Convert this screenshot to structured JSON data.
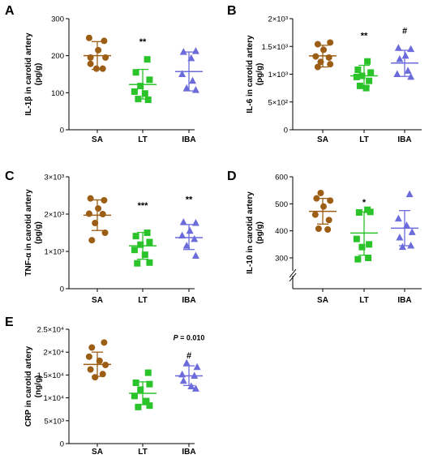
{
  "colors": {
    "SA": "#9c5d15",
    "LT": "#2ac42a",
    "IBA": "#6b6bdb"
  },
  "chart_data": [
    {
      "panel": "A",
      "type": "scatter",
      "ylabel": [
        "IL-1β in carotid artery",
        "(pg/g)"
      ],
      "categories": [
        "SA",
        "LT",
        "IBA"
      ],
      "ylim": [
        0,
        300
      ],
      "yticks": [
        0,
        100,
        200,
        300
      ],
      "ytick_labels": [
        "0",
        "100",
        "200",
        "300"
      ],
      "series": [
        {
          "category": "SA",
          "marker": "circle",
          "mean": 200,
          "sd_low": 163,
          "sd_high": 238,
          "values": [
            [
              -0.18,
              248
            ],
            [
              0.15,
              240
            ],
            [
              0.02,
              215
            ],
            [
              -0.15,
              195
            ],
            [
              0.18,
              195
            ],
            [
              -0.15,
              178
            ],
            [
              0.12,
              165
            ],
            [
              -0.02,
              165
            ]
          ]
        },
        {
          "category": "LT",
          "marker": "square",
          "mean": 122,
          "sd_low": 83,
          "sd_high": 163,
          "values": [
            [
              0.1,
              190
            ],
            [
              -0.15,
              155
            ],
            [
              0.15,
              135
            ],
            [
              -0.05,
              118
            ],
            [
              -0.18,
              103
            ],
            [
              0.05,
              98
            ],
            [
              -0.1,
              83
            ],
            [
              0.12,
              81
            ]
          ]
        },
        {
          "category": "IBA",
          "marker": "triangle",
          "mean": 157,
          "sd_low": 105,
          "sd_high": 210,
          "values": [
            [
              -0.12,
              210
            ],
            [
              0.15,
              212
            ],
            [
              0.05,
              193
            ],
            [
              -0.15,
              150
            ],
            [
              0.08,
              132
            ],
            [
              -0.05,
              112
            ],
            [
              0.15,
              107
            ]
          ]
        }
      ],
      "significance": [
        {
          "category": "LT",
          "text": "**",
          "y": 230
        }
      ]
    },
    {
      "panel": "B",
      "type": "scatter",
      "ylabel": [
        "IL-6 in carotid artery",
        "(pg/g)"
      ],
      "categories": [
        "SA",
        "LT",
        "IBA"
      ],
      "ylim": [
        0,
        2000
      ],
      "yticks": [
        0,
        500,
        1000,
        1500,
        2000
      ],
      "ytick_labels": [
        "0",
        "5×10²",
        "1×10³",
        "1.5×10³",
        "2×10³"
      ],
      "series": [
        {
          "category": "SA",
          "marker": "circle",
          "mean": 1330,
          "sd_low": 1130,
          "sd_high": 1520,
          "values": [
            [
              -0.12,
              1540
            ],
            [
              0.18,
              1570
            ],
            [
              0.02,
              1440
            ],
            [
              -0.17,
              1320
            ],
            [
              0.15,
              1300
            ],
            [
              -0.05,
              1220
            ],
            [
              0.18,
              1180
            ],
            [
              -0.12,
              1130
            ]
          ]
        },
        {
          "category": "LT",
          "marker": "square",
          "mean": 970,
          "sd_low": 780,
          "sd_high": 1160,
          "values": [
            [
              0.08,
              1230
            ],
            [
              -0.15,
              1080
            ],
            [
              0.16,
              1030
            ],
            [
              -0.05,
              970
            ],
            [
              -0.18,
              950
            ],
            [
              0.12,
              880
            ],
            [
              -0.1,
              790
            ],
            [
              0.05,
              750
            ]
          ]
        },
        {
          "category": "IBA",
          "marker": "triangle",
          "mean": 1200,
          "sd_low": 960,
          "sd_high": 1430,
          "values": [
            [
              -0.15,
              1470
            ],
            [
              0.15,
              1450
            ],
            [
              0.02,
              1330
            ],
            [
              -0.12,
              1270
            ],
            [
              0.08,
              1060
            ],
            [
              -0.18,
              1000
            ],
            [
              0.15,
              950
            ]
          ]
        }
      ],
      "significance": [
        {
          "category": "LT",
          "text": "**",
          "y": 1640
        },
        {
          "category": "IBA",
          "text": "#",
          "y": 1730
        }
      ]
    },
    {
      "panel": "C",
      "type": "scatter",
      "ylabel": [
        "TNF-α in carotid artery",
        "(pg/g)"
      ],
      "categories": [
        "SA",
        "LT",
        "IBA"
      ],
      "ylim": [
        0,
        3000
      ],
      "yticks": [
        0,
        1000,
        2000,
        3000
      ],
      "ytick_labels": [
        "0",
        "1×10³",
        "2×10³",
        "3×10³"
      ],
      "series": [
        {
          "category": "SA",
          "marker": "circle",
          "mean": 1970,
          "sd_low": 1560,
          "sd_high": 2380,
          "values": [
            [
              -0.15,
              2420
            ],
            [
              0.15,
              2370
            ],
            [
              0.02,
              2150
            ],
            [
              -0.18,
              2010
            ],
            [
              0.12,
              2000
            ],
            [
              -0.05,
              1760
            ],
            [
              0.17,
              1500
            ],
            [
              -0.12,
              1300
            ]
          ]
        },
        {
          "category": "LT",
          "marker": "square",
          "mean": 1150,
          "sd_low": 790,
          "sd_high": 1510,
          "values": [
            [
              0.1,
              1500
            ],
            [
              -0.15,
              1410
            ],
            [
              0.15,
              1250
            ],
            [
              -0.05,
              1180
            ],
            [
              -0.18,
              1040
            ],
            [
              0.05,
              910
            ],
            [
              0.15,
              700
            ],
            [
              -0.12,
              680
            ]
          ]
        },
        {
          "category": "IBA",
          "marker": "triangle",
          "mean": 1370,
          "sd_low": 1050,
          "sd_high": 1720,
          "values": [
            [
              -0.12,
              1780
            ],
            [
              0.15,
              1760
            ],
            [
              0.02,
              1550
            ],
            [
              -0.15,
              1420
            ],
            [
              0.12,
              1330
            ],
            [
              -0.05,
              1150
            ],
            [
              0.15,
              880
            ]
          ]
        }
      ],
      "significance": [
        {
          "category": "LT",
          "text": "***",
          "y": 2150
        },
        {
          "category": "IBA",
          "text": "**",
          "y": 2320
        }
      ]
    },
    {
      "panel": "D",
      "type": "scatter",
      "ylabel": [
        "IL-10 in carotid artery",
        "(pg/g)"
      ],
      "categories": [
        "SA",
        "LT",
        "IBA"
      ],
      "ylim": [
        0,
        600
      ],
      "axis_break": true,
      "yticks": [
        300,
        400,
        500,
        600
      ],
      "ytick_labels": [
        "300",
        "400",
        "500",
        "600"
      ],
      "series": [
        {
          "category": "SA",
          "marker": "circle",
          "mean": 472,
          "sd_low": 425,
          "sd_high": 520,
          "values": [
            [
              -0.05,
              540
            ],
            [
              -0.15,
              520
            ],
            [
              0.18,
              512
            ],
            [
              0.02,
              490
            ],
            [
              -0.18,
              460
            ],
            [
              0.15,
              440
            ],
            [
              -0.1,
              408
            ],
            [
              0.12,
              405
            ]
          ]
        },
        {
          "category": "LT",
          "marker": "square",
          "mean": 392,
          "sd_low": 310,
          "sd_high": 470,
          "values": [
            [
              0.08,
              478
            ],
            [
              -0.12,
              468
            ],
            [
              0.15,
              470
            ],
            [
              -0.18,
              370
            ],
            [
              0.12,
              350
            ],
            [
              -0.05,
              340
            ],
            [
              0.1,
              300
            ],
            [
              -0.15,
              295
            ]
          ]
        },
        {
          "category": "IBA",
          "marker": "triangle",
          "mean": 410,
          "sd_low": 345,
          "sd_high": 475,
          "values": [
            [
              0.12,
              535
            ],
            [
              -0.15,
              445
            ],
            [
              0.05,
              420
            ],
            [
              0.18,
              395
            ],
            [
              -0.12,
              375
            ],
            [
              0.15,
              345
            ],
            [
              -0.05,
              340
            ]
          ]
        }
      ],
      "significance": [
        {
          "category": "LT",
          "text": "*",
          "y": 495
        }
      ]
    },
    {
      "panel": "E",
      "type": "scatter",
      "ylabel": [
        "CRP in carotid artery",
        "(ng/g)"
      ],
      "categories": [
        "SA",
        "LT",
        "IBA"
      ],
      "ylim": [
        0,
        25000
      ],
      "yticks": [
        0,
        5000,
        10000,
        15000,
        20000,
        25000
      ],
      "ytick_labels": [
        "0",
        "5×10³",
        "1×10⁴",
        "1.5×10⁴",
        "2×10⁴",
        "2.5×10⁴"
      ],
      "series": [
        {
          "category": "SA",
          "marker": "circle",
          "mean": 17300,
          "sd_low": 14700,
          "sd_high": 20000,
          "values": [
            [
              0.15,
              22100
            ],
            [
              -0.12,
              21000
            ],
            [
              -0.18,
              19000
            ],
            [
              0.05,
              18100
            ],
            [
              0.18,
              17200
            ],
            [
              -0.15,
              16200
            ],
            [
              0.12,
              15200
            ],
            [
              -0.05,
              14500
            ]
          ]
        },
        {
          "category": "LT",
          "marker": "square",
          "mean": 11000,
          "sd_low": 8500,
          "sd_high": 13500,
          "values": [
            [
              0.12,
              15500
            ],
            [
              -0.15,
              13300
            ],
            [
              0.15,
              13000
            ],
            [
              -0.05,
              11800
            ],
            [
              -0.18,
              10400
            ],
            [
              0.08,
              9300
            ],
            [
              0.15,
              8300
            ],
            [
              -0.1,
              8000
            ]
          ]
        },
        {
          "category": "IBA",
          "marker": "triangle",
          "mean": 14800,
          "sd_low": 12700,
          "sd_high": 17000,
          "values": [
            [
              -0.05,
              17600
            ],
            [
              0.18,
              16700
            ],
            [
              -0.15,
              15100
            ],
            [
              0.12,
              14800
            ],
            [
              -0.12,
              13700
            ],
            [
              0.05,
              12500
            ],
            [
              0.15,
              12000
            ]
          ]
        }
      ],
      "significance": [
        {
          "category": "IBA",
          "text": "#",
          "y": 18600
        }
      ],
      "annotation": {
        "category": "IBA",
        "p_label": "P",
        "p_value": " = 0.010",
        "y": 22600
      }
    }
  ]
}
